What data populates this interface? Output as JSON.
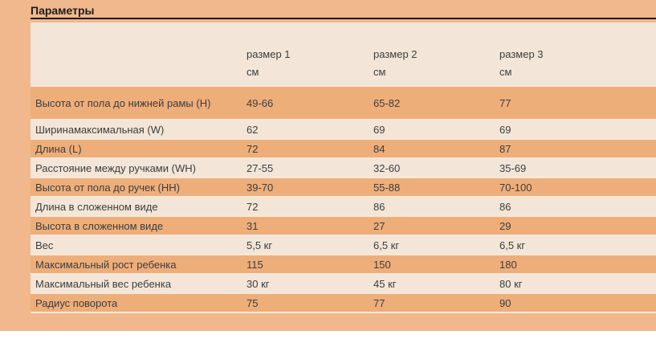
{
  "title": "Параметры",
  "table": {
    "columns": [
      {
        "label": "размер 1",
        "unit": "см"
      },
      {
        "label": "размер 2",
        "unit": "см"
      },
      {
        "label": "размер 3",
        "unit": "см"
      }
    ],
    "rows": [
      {
        "label": "Высота от пола до нижней рамы (H)",
        "values": [
          "49-66",
          "65-82",
          "77"
        ]
      },
      {
        "label": "Ширинамаксимальная (W)",
        "values": [
          "62",
          "69",
          "69"
        ]
      },
      {
        "label": "Длина (L)",
        "values": [
          "72",
          "84",
          "87"
        ]
      },
      {
        "label": "Расстояние между ручками (WH)",
        "values": [
          "27-55",
          "32-60",
          "35-69"
        ]
      },
      {
        "label": "Высота от пола до ручек (HH)",
        "values": [
          "39-70",
          "55-88",
          "70-100"
        ]
      },
      {
        "label": "Длина в сложенном виде",
        "values": [
          "72",
          "86",
          "86"
        ]
      },
      {
        "label": "Высота в сложенном виде",
        "values": [
          "31",
          "27",
          "29"
        ]
      },
      {
        "label": "Вес",
        "values": [
          "5,5 кг",
          "6,5 кг",
          "6,5 кг"
        ]
      },
      {
        "label": "Максимальный рост ребенка",
        "values": [
          "115",
          "150",
          "180"
        ]
      },
      {
        "label": "Максимальный вес ребенка",
        "values": [
          "30 кг",
          "45 кг",
          "80 кг"
        ]
      },
      {
        "label": "Радиус поворота",
        "values": [
          "75",
          "77",
          "90"
        ]
      }
    ]
  },
  "colors": {
    "page_bg": "#f0b88c",
    "row_orange": "#eeae7a",
    "row_cream": "#f3e6d8",
    "separator": "#f7e8d8",
    "text": "#3d3d3d",
    "title_text": "#1c1c1c",
    "rule": "#1c1c1c",
    "bottom_bg": "#ffffff"
  }
}
